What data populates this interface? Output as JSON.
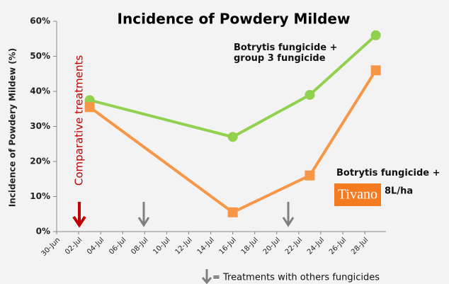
{
  "chart_data": {
    "type": "line",
    "title": "Incidence of Powdery Mildew",
    "ylabel": "Incidence of Powdery Mildew (%)",
    "xticks": [
      "30-Jun",
      "02-Jul",
      "04-Jul",
      "06-Jul",
      "08-Jul",
      "10-Jul",
      "12-Jul",
      "14-Jul",
      "16-Jul",
      "18-Jul",
      "20-Jul",
      "22-Jul",
      "24-Jul",
      "26-Jul",
      "28-Jul"
    ],
    "x": [
      "03-Jul",
      "16-Jul",
      "23-Jul",
      "29-Jul"
    ],
    "series": [
      {
        "name": "Botrytis fungicide + group 3 fungicide",
        "color": "#92d050",
        "values": [
          37.5,
          27,
          39,
          56
        ]
      },
      {
        "name": "Botrytis fungicide +",
        "color": "#f79646",
        "values": [
          35.5,
          5.5,
          16,
          46
        ]
      }
    ],
    "ylim": [
      0,
      60
    ],
    "yticks": [
      {
        "value": 0,
        "label": "0%"
      },
      {
        "value": 10,
        "label": "10%"
      },
      {
        "value": 20,
        "label": "20%"
      },
      {
        "value": 30,
        "label": "30%"
      },
      {
        "value": 40,
        "label": "40%"
      },
      {
        "value": 50,
        "label": "50%"
      },
      {
        "value": 60,
        "label": "60%"
      }
    ],
    "annotations": {
      "comparative": "Comparative treatments",
      "product": "Tivano",
      "rate": "8L/ha",
      "others": "= Treatments with others fungicides"
    }
  }
}
